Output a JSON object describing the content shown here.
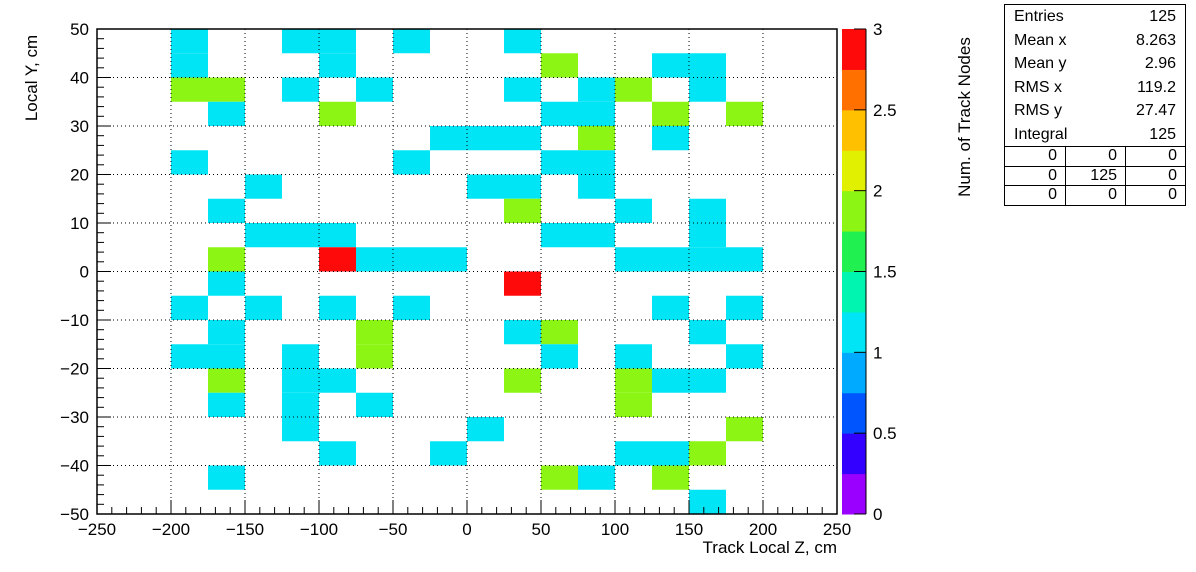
{
  "chart_data": {
    "type": "heatmap",
    "title": "",
    "xlabel": "Track Local Z, cm",
    "ylabel": "Local Y, cm",
    "zlabel": "Num. of Track Nodes",
    "xlim": [
      -250,
      250
    ],
    "ylim": [
      -50,
      50
    ],
    "zlim": [
      0,
      3
    ],
    "bin_width_x": 25,
    "bin_height_y": 5,
    "x_ticks": [
      -250,
      -200,
      -150,
      -100,
      -50,
      0,
      50,
      100,
      150,
      200,
      250
    ],
    "x_tick_labels": [
      "−250",
      "−200",
      "−150",
      "−100",
      "−50",
      "0",
      "50",
      "100",
      "150",
      "200",
      "250"
    ],
    "y_ticks": [
      -50,
      -40,
      -30,
      -20,
      -10,
      0,
      10,
      20,
      30,
      40,
      50
    ],
    "y_tick_labels": [
      "−50",
      "−40",
      "−30",
      "−20",
      "−10",
      "0",
      "10",
      "20",
      "30",
      "40",
      "50"
    ],
    "z_ticks": [
      0,
      0.5,
      1,
      1.5,
      2,
      2.5,
      3
    ],
    "z_tick_labels": [
      "0",
      "0.5",
      "1",
      "1.5",
      "2",
      "2.5",
      "3"
    ],
    "grid": true,
    "cells": [
      {
        "x": -200,
        "y": 45,
        "z": 1
      },
      {
        "x": -125,
        "y": 45,
        "z": 1
      },
      {
        "x": -100,
        "y": 45,
        "z": 1
      },
      {
        "x": -50,
        "y": 45,
        "z": 1
      },
      {
        "x": 25,
        "y": 45,
        "z": 1
      },
      {
        "x": -200,
        "y": 40,
        "z": 1
      },
      {
        "x": -100,
        "y": 40,
        "z": 1
      },
      {
        "x": 50,
        "y": 40,
        "z": 2
      },
      {
        "x": 125,
        "y": 40,
        "z": 1
      },
      {
        "x": 150,
        "y": 40,
        "z": 1
      },
      {
        "x": -200,
        "y": 35,
        "z": 2
      },
      {
        "x": -175,
        "y": 35,
        "z": 2
      },
      {
        "x": -125,
        "y": 35,
        "z": 1
      },
      {
        "x": -75,
        "y": 35,
        "z": 1
      },
      {
        "x": 25,
        "y": 35,
        "z": 1
      },
      {
        "x": 75,
        "y": 35,
        "z": 1
      },
      {
        "x": 100,
        "y": 35,
        "z": 2
      },
      {
        "x": 150,
        "y": 35,
        "z": 1
      },
      {
        "x": -175,
        "y": 30,
        "z": 1
      },
      {
        "x": -100,
        "y": 30,
        "z": 2
      },
      {
        "x": 50,
        "y": 30,
        "z": 1
      },
      {
        "x": 75,
        "y": 30,
        "z": 1
      },
      {
        "x": 125,
        "y": 30,
        "z": 2
      },
      {
        "x": 175,
        "y": 30,
        "z": 2
      },
      {
        "x": -25,
        "y": 25,
        "z": 1
      },
      {
        "x": 0,
        "y": 25,
        "z": 1
      },
      {
        "x": 25,
        "y": 25,
        "z": 1
      },
      {
        "x": 75,
        "y": 25,
        "z": 2
      },
      {
        "x": 125,
        "y": 25,
        "z": 1
      },
      {
        "x": -200,
        "y": 20,
        "z": 1
      },
      {
        "x": -50,
        "y": 20,
        "z": 1
      },
      {
        "x": 50,
        "y": 20,
        "z": 1
      },
      {
        "x": 75,
        "y": 20,
        "z": 1
      },
      {
        "x": -150,
        "y": 15,
        "z": 1
      },
      {
        "x": 0,
        "y": 15,
        "z": 1
      },
      {
        "x": 25,
        "y": 15,
        "z": 1
      },
      {
        "x": 75,
        "y": 15,
        "z": 1
      },
      {
        "x": -175,
        "y": 10,
        "z": 1
      },
      {
        "x": 25,
        "y": 10,
        "z": 2
      },
      {
        "x": 100,
        "y": 10,
        "z": 1
      },
      {
        "x": 150,
        "y": 10,
        "z": 1
      },
      {
        "x": -150,
        "y": 5,
        "z": 1
      },
      {
        "x": -125,
        "y": 5,
        "z": 1
      },
      {
        "x": -100,
        "y": 5,
        "z": 1
      },
      {
        "x": 50,
        "y": 5,
        "z": 1
      },
      {
        "x": 75,
        "y": 5,
        "z": 1
      },
      {
        "x": 150,
        "y": 5,
        "z": 1
      },
      {
        "x": -175,
        "y": 0,
        "z": 2
      },
      {
        "x": -100,
        "y": 0,
        "z": 3
      },
      {
        "x": -75,
        "y": 0,
        "z": 1
      },
      {
        "x": -50,
        "y": 0,
        "z": 1
      },
      {
        "x": -25,
        "y": 0,
        "z": 1
      },
      {
        "x": 100,
        "y": 0,
        "z": 1
      },
      {
        "x": 125,
        "y": 0,
        "z": 1
      },
      {
        "x": 150,
        "y": 0,
        "z": 1
      },
      {
        "x": 175,
        "y": 0,
        "z": 1
      },
      {
        "x": -175,
        "y": -5,
        "z": 1
      },
      {
        "x": 25,
        "y": -5,
        "z": 3
      },
      {
        "x": -200,
        "y": -10,
        "z": 1
      },
      {
        "x": -150,
        "y": -10,
        "z": 1
      },
      {
        "x": -100,
        "y": -10,
        "z": 1
      },
      {
        "x": -50,
        "y": -10,
        "z": 1
      },
      {
        "x": 125,
        "y": -10,
        "z": 1
      },
      {
        "x": 175,
        "y": -10,
        "z": 1
      },
      {
        "x": -175,
        "y": -15,
        "z": 1
      },
      {
        "x": -75,
        "y": -15,
        "z": 2
      },
      {
        "x": 25,
        "y": -15,
        "z": 1
      },
      {
        "x": 50,
        "y": -15,
        "z": 2
      },
      {
        "x": 150,
        "y": -15,
        "z": 1
      },
      {
        "x": -200,
        "y": -20,
        "z": 1
      },
      {
        "x": -175,
        "y": -20,
        "z": 1
      },
      {
        "x": -125,
        "y": -20,
        "z": 1
      },
      {
        "x": -75,
        "y": -20,
        "z": 2
      },
      {
        "x": 50,
        "y": -20,
        "z": 1
      },
      {
        "x": 100,
        "y": -20,
        "z": 1
      },
      {
        "x": 175,
        "y": -20,
        "z": 1
      },
      {
        "x": -175,
        "y": -25,
        "z": 2
      },
      {
        "x": -125,
        "y": -25,
        "z": 1
      },
      {
        "x": -100,
        "y": -25,
        "z": 1
      },
      {
        "x": 25,
        "y": -25,
        "z": 2
      },
      {
        "x": 100,
        "y": -25,
        "z": 2
      },
      {
        "x": 125,
        "y": -25,
        "z": 1
      },
      {
        "x": 150,
        "y": -25,
        "z": 1
      },
      {
        "x": -175,
        "y": -30,
        "z": 1
      },
      {
        "x": -125,
        "y": -30,
        "z": 1
      },
      {
        "x": -75,
        "y": -30,
        "z": 1
      },
      {
        "x": 100,
        "y": -30,
        "z": 2
      },
      {
        "x": -125,
        "y": -35,
        "z": 1
      },
      {
        "x": 0,
        "y": -35,
        "z": 1
      },
      {
        "x": 175,
        "y": -35,
        "z": 2
      },
      {
        "x": -100,
        "y": -40,
        "z": 1
      },
      {
        "x": -25,
        "y": -40,
        "z": 1
      },
      {
        "x": 100,
        "y": -40,
        "z": 1
      },
      {
        "x": 125,
        "y": -40,
        "z": 1
      },
      {
        "x": 150,
        "y": -40,
        "z": 2
      },
      {
        "x": -175,
        "y": -45,
        "z": 1
      },
      {
        "x": 50,
        "y": -45,
        "z": 2
      },
      {
        "x": 75,
        "y": -45,
        "z": 1
      },
      {
        "x": 125,
        "y": -45,
        "z": 2
      },
      {
        "x": 150,
        "y": -50,
        "z": 1
      }
    ],
    "stats": {
      "rows": [
        {
          "label": "Entries",
          "value": "125"
        },
        {
          "label": "Mean x",
          "value": "8.263"
        },
        {
          "label": "Mean y",
          "value": "2.96"
        },
        {
          "label": "RMS x",
          "value": "119.2"
        },
        {
          "label": "RMS y",
          "value": "27.47"
        },
        {
          "label": "Integral",
          "value": "125"
        }
      ],
      "grid": [
        [
          "0",
          "0",
          "0"
        ],
        [
          "0",
          "125",
          "0"
        ],
        [
          "0",
          "0",
          "0"
        ]
      ]
    },
    "colors": {
      "z1": "#00e5f5",
      "z2": "#8cf514",
      "z3": "#ff0a0a",
      "palette": [
        "#9900ff",
        "#3300ff",
        "#0055ff",
        "#00aaff",
        "#00e5f5",
        "#00f5b0",
        "#20f050",
        "#8cf514",
        "#e0f000",
        "#ffc000",
        "#ff7000",
        "#ff0a0a"
      ]
    }
  }
}
